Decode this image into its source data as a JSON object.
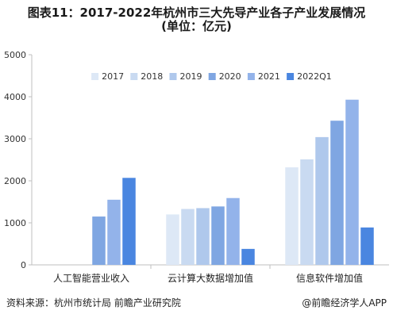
{
  "title_line1": "图表11：2017-2022年杭州市三大先导产业各子产业发展情况",
  "title_line2": "(单位：亿元)",
  "source_text": "资料来源：杭州市统计局 前瞻产业研究院",
  "credit_text": "@前瞻经济学人APP",
  "chart_data": {
    "type": "bar",
    "categories": [
      "人工智能营业收入",
      "云计算大数据增加值",
      "信息软件增加值"
    ],
    "series": [
      {
        "name": "2017",
        "color": "#dde8f6",
        "values": [
          null,
          1200,
          2320
        ]
      },
      {
        "name": "2018",
        "color": "#c9daf1",
        "values": [
          null,
          1330,
          2510
        ]
      },
      {
        "name": "2019",
        "color": "#afc8ec",
        "values": [
          null,
          1350,
          3040
        ]
      },
      {
        "name": "2020",
        "color": "#7fa6e2",
        "values": [
          1150,
          1390,
          3430
        ]
      },
      {
        "name": "2021",
        "color": "#93b3ea",
        "values": [
          1550,
          1590,
          3930
        ]
      },
      {
        "name": "2022Q1",
        "color": "#4a86e0",
        "values": [
          2070,
          380,
          890
        ]
      }
    ],
    "ylim": [
      0,
      5000
    ],
    "yticks": [
      0,
      1000,
      2000,
      3000,
      4000,
      5000
    ],
    "grid": false,
    "legend_position": "top-center"
  }
}
